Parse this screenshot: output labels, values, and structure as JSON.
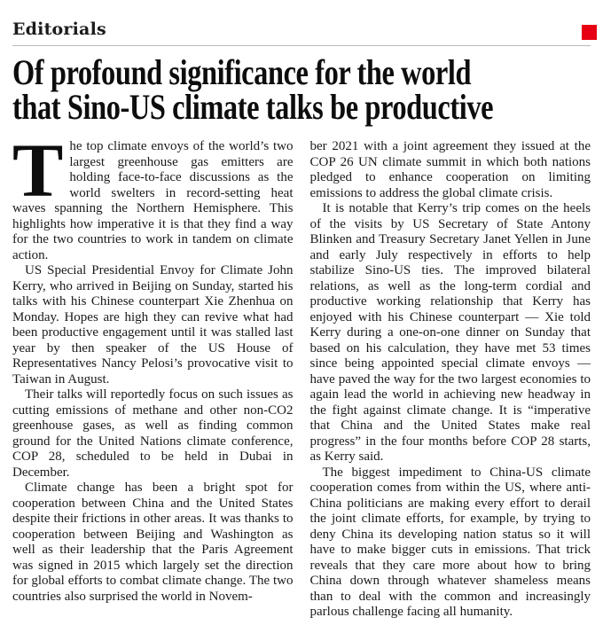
{
  "page": {
    "section_label": "Editorials",
    "accent_color": "#e60012",
    "rule_color": "#b9b9b9"
  },
  "headline": {
    "line1": "Of profound significance for the world",
    "line2": "that Sino-US climate talks be productive"
  },
  "article": {
    "columns": [
      {
        "paragraphs": [
          {
            "drop_cap": "T",
            "indent": false,
            "text": "he top climate envoys of the world’s two largest greenhouse gas emitters are holding face-to-face discussions as the world swelters in record-setting heat waves spanning the Northern Hemisphere. This highlights how imperative it is that they find a way for the two countries to work in tandem on climate action."
          },
          {
            "indent": true,
            "text": "US Special Presidential Envoy for Climate John Kerry, who arrived in Beijing on Sunday, started his talks with his Chinese counterpart Xie Zhenhua on Monday. Hopes are high they can revive what had been productive engagement until it was stalled last year by then speaker of the US House of Representatives Nancy Pelosi’s provocative visit to Taiwan in August."
          },
          {
            "indent": true,
            "text": "Their talks will reportedly focus on such issues as cutting emissions of methane and other non-CO2 greenhouse gases, as well as finding common ground for the United Nations climate conference, COP 28, scheduled to be held in Dubai in December."
          },
          {
            "indent": true,
            "text": "Climate change has been a bright spot for cooperation between China and the United States despite their frictions in other areas. It was thanks to cooperation between Beijing and Washington as well as their leadership that the Paris Agreement was signed in 2015 which largely set the direction for global efforts to combat climate change. The two countries also surprised the world in Novem-"
          }
        ]
      },
      {
        "paragraphs": [
          {
            "indent": false,
            "text": "ber 2021 with a joint agreement they issued at the COP 26 UN climate summit in which both nations pledged to enhance cooperation on limiting emissions to address the global climate crisis."
          },
          {
            "indent": true,
            "text": "It is notable that Kerry’s trip comes on the heels of the visits by US Secretary of State Antony Blinken and Treasury Secretary Janet Yellen in June and early July respectively in efforts to help stabilize Sino-US ties. The improved bilateral relations, as well as the long-term cordial and productive working relationship that Kerry has enjoyed with his Chinese counterpart — Xie told Kerry during a one-on-one dinner on Sunday that based on his calculation, they have met 53 times since being appointed special climate envoys — have paved the way for the two largest economies to again lead the world in achieving new headway in the fight against climate change. It is “imperative that China and the United States make real progress” in the four months before COP 28 starts, as Kerry said."
          },
          {
            "indent": true,
            "text": "The biggest impediment to China-US climate cooperation comes from within the US, where anti-China politicians are making every effort to derail the joint climate efforts, for example, by trying to deny China its developing nation status so it will have to make bigger cuts in emissions. That trick reveals that they care more about how to bring China down through whatever shameless means than to deal with the common and increasingly parlous challenge facing all humanity."
          }
        ]
      }
    ]
  }
}
